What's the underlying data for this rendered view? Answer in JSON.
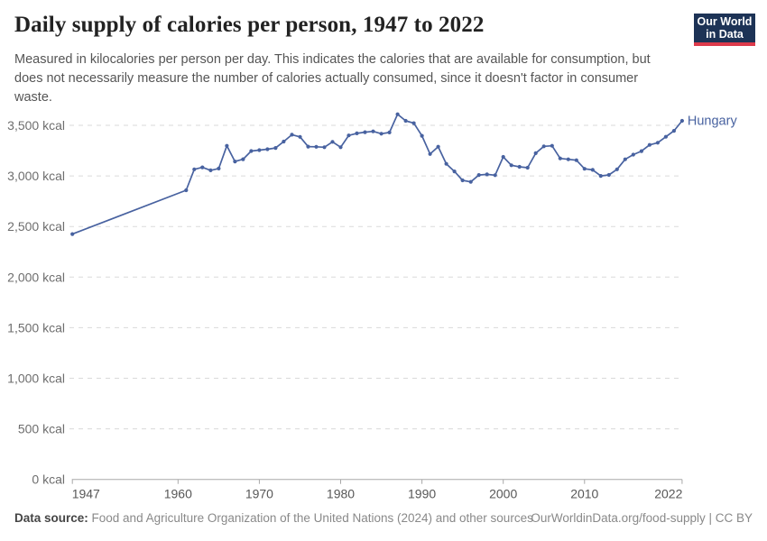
{
  "header": {
    "title": "Daily supply of calories per person, 1947 to 2022",
    "subtitle_lines": [
      "Measured in kilocalories per person per day. This indicates the calories that are available for consumption, but",
      "does not necessarily measure the number of calories actually consumed, since it doesn't factor in consumer",
      "waste."
    ],
    "logo": {
      "line1": "Our World",
      "line2": "in Data",
      "bg_color": "#1d3356",
      "accent_color": "#dd3a4b"
    }
  },
  "chart_data": {
    "type": "line",
    "title": "Daily supply of calories per person, 1947 to 2022",
    "unit": "kcal",
    "entity_label": "Hungary",
    "line_color": "#4862a0",
    "grid": "horizontal-dashed",
    "legend_position": "end-of-line",
    "xlim": [
      1947,
      2022
    ],
    "ylim": [
      0,
      3500
    ],
    "xticks": [
      1947,
      1960,
      1970,
      1980,
      1990,
      2000,
      2010,
      2022
    ],
    "yticks": [
      {
        "value": 0,
        "label": "0 kcal"
      },
      {
        "value": 500,
        "label": "500 kcal"
      },
      {
        "value": 1000,
        "label": "1,000 kcal"
      },
      {
        "value": 1500,
        "label": "1,500 kcal"
      },
      {
        "value": 2000,
        "label": "2,000 kcal"
      },
      {
        "value": 2500,
        "label": "2,500 kcal"
      },
      {
        "value": 3000,
        "label": "3,000 kcal"
      },
      {
        "value": 3500,
        "label": "3,500 kcal"
      }
    ],
    "x": [
      1947,
      1961,
      1962,
      1963,
      1964,
      1965,
      1966,
      1967,
      1968,
      1969,
      1970,
      1971,
      1972,
      1973,
      1974,
      1975,
      1976,
      1977,
      1978,
      1979,
      1980,
      1981,
      1982,
      1983,
      1984,
      1985,
      1986,
      1987,
      1988,
      1989,
      1990,
      1991,
      1992,
      1993,
      1994,
      1995,
      1996,
      1997,
      1998,
      1999,
      2000,
      2001,
      2002,
      2003,
      2004,
      2005,
      2006,
      2007,
      2008,
      2009,
      2010,
      2011,
      2012,
      2013,
      2014,
      2015,
      2016,
      2017,
      2018,
      2019,
      2020,
      2021,
      2022
    ],
    "series": [
      {
        "name": "Hungary",
        "values": [
          2425,
          2858,
          3065,
          3085,
          3055,
          3073,
          3298,
          3143,
          3165,
          3246,
          3255,
          3264,
          3276,
          3340,
          3407,
          3386,
          3290,
          3288,
          3283,
          3337,
          3283,
          3400,
          3421,
          3432,
          3440,
          3417,
          3430,
          3610,
          3545,
          3521,
          3397,
          3217,
          3289,
          3119,
          3045,
          2956,
          2941,
          3009,
          3015,
          3007,
          3188,
          3105,
          3090,
          3081,
          3225,
          3292,
          3298,
          3173,
          3164,
          3155,
          3070,
          3060,
          3000,
          3010,
          3065,
          3164,
          3210,
          3245,
          3307,
          3328,
          3387,
          3446,
          3545
        ]
      }
    ]
  },
  "footer": {
    "source_label": "Data source:",
    "source_text": " Food and Agriculture Organization of the United Nations (2024) and other sources",
    "link_text": "OurWorldinData.org/food-supply | CC BY"
  }
}
